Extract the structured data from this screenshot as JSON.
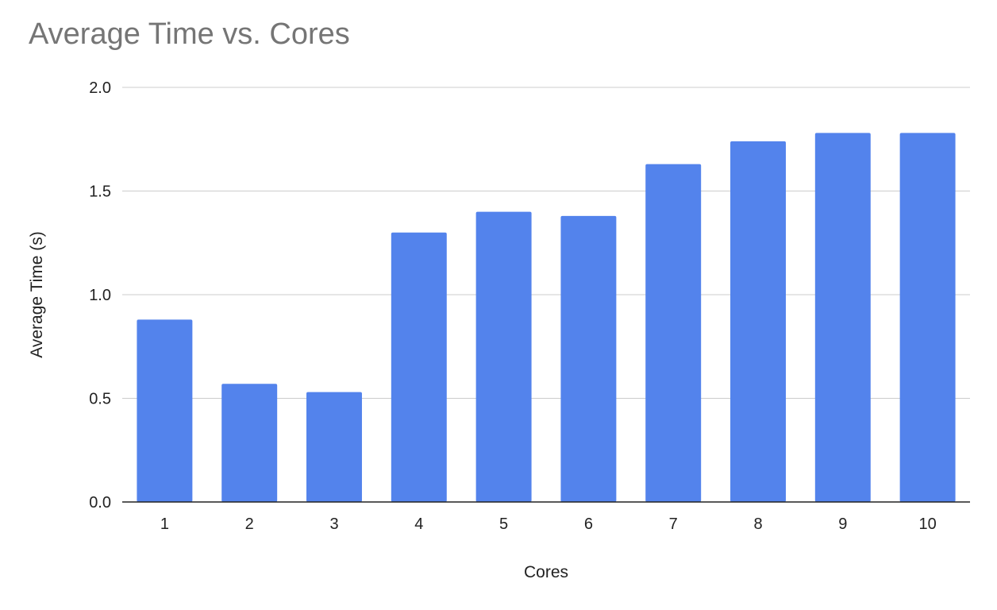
{
  "chart_data": {
    "type": "bar",
    "title": "Average Time vs. Cores",
    "xlabel": "Cores",
    "ylabel": "Average Time (s)",
    "categories": [
      "1",
      "2",
      "3",
      "4",
      "5",
      "6",
      "7",
      "8",
      "9",
      "10"
    ],
    "values": [
      0.88,
      0.57,
      0.53,
      1.3,
      1.4,
      1.38,
      1.63,
      1.74,
      1.78,
      1.78
    ],
    "ylim": [
      0,
      2.0
    ],
    "yticks": [
      "0.0",
      "0.5",
      "1.0",
      "1.5",
      "2.0"
    ],
    "grid": true,
    "legend": "none",
    "bar_color": "#5383EC",
    "grid_color": "#cccccc",
    "axis_color": "#222222"
  }
}
